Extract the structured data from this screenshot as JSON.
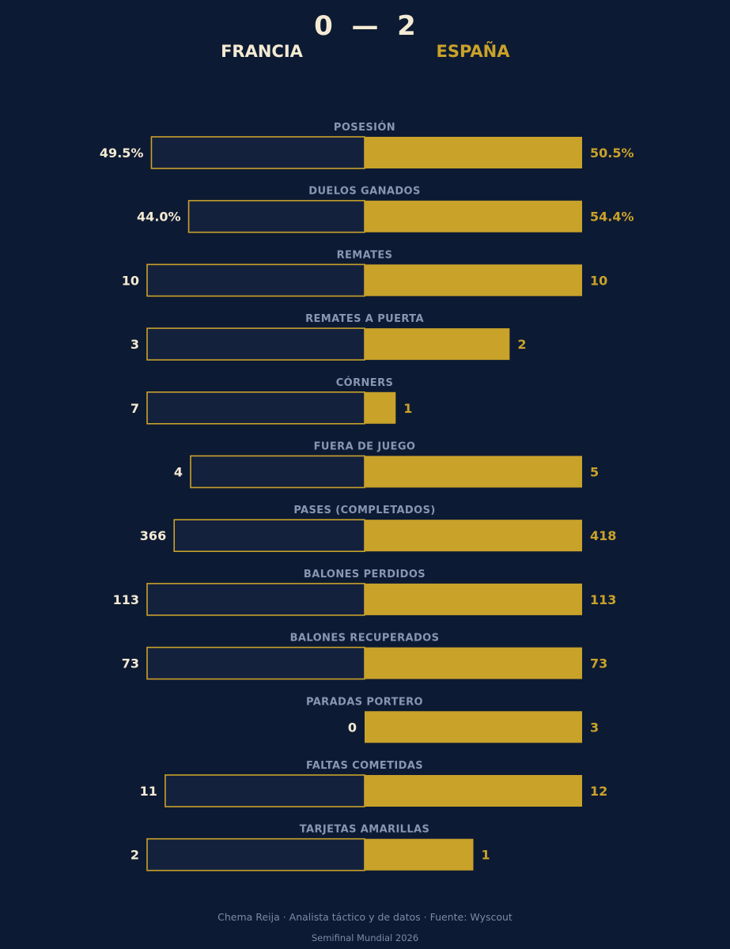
{
  "header": {
    "score": "0  —  2",
    "home_team": "FRANCIA",
    "away_team": "ESPAÑA"
  },
  "colors": {
    "background": "#0d1a33",
    "home_fill": "#14213d",
    "away_fill": "#c9a22a",
    "accent": "#c9a22a",
    "text_light": "#f3ead3",
    "label": "#8896b3"
  },
  "chart_data": {
    "type": "bar",
    "orientation": "diverging-horizontal",
    "series": [
      {
        "name": "FRANCIA"
      },
      {
        "name": "ESPAÑA"
      }
    ],
    "stats": [
      {
        "label": "POSESIÓN",
        "home": 49.5,
        "away": 50.5,
        "home_display": "49.5%",
        "away_display": "50.5%"
      },
      {
        "label": "DUELOS GANADOS",
        "home": 44.0,
        "away": 54.4,
        "home_display": "44.0%",
        "away_display": "54.4%"
      },
      {
        "label": "REMATES",
        "home": 10,
        "away": 10,
        "home_display": "10",
        "away_display": "10"
      },
      {
        "label": "REMATES A PUERTA",
        "home": 3,
        "away": 2,
        "home_display": "3",
        "away_display": "2"
      },
      {
        "label": "CÓRNERS",
        "home": 7,
        "away": 1,
        "home_display": "7",
        "away_display": "1"
      },
      {
        "label": "FUERA DE JUEGO",
        "home": 4,
        "away": 5,
        "home_display": "4",
        "away_display": "5"
      },
      {
        "label": "PASES (COMPLETADOS)",
        "home": 366,
        "away": 418,
        "home_display": "366",
        "away_display": "418"
      },
      {
        "label": "BALONES PERDIDOS",
        "home": 113,
        "away": 113,
        "home_display": "113",
        "away_display": "113"
      },
      {
        "label": "BALONES RECUPERADOS",
        "home": 73,
        "away": 73,
        "home_display": "73",
        "away_display": "73"
      },
      {
        "label": "PARADAS PORTERO",
        "home": 0,
        "away": 3,
        "home_display": "0",
        "away_display": "3"
      },
      {
        "label": "FALTAS COMETIDAS",
        "home": 11,
        "away": 12,
        "home_display": "11",
        "away_display": "12"
      },
      {
        "label": "TARJETAS AMARILLAS",
        "home": 2,
        "away": 1,
        "home_display": "2",
        "away_display": "1"
      }
    ]
  },
  "footer": {
    "credit": "Chema Reija · Analista táctico y de datos · Fuente: Wyscout",
    "subtitle": "Semifinal Mundial 2026"
  }
}
